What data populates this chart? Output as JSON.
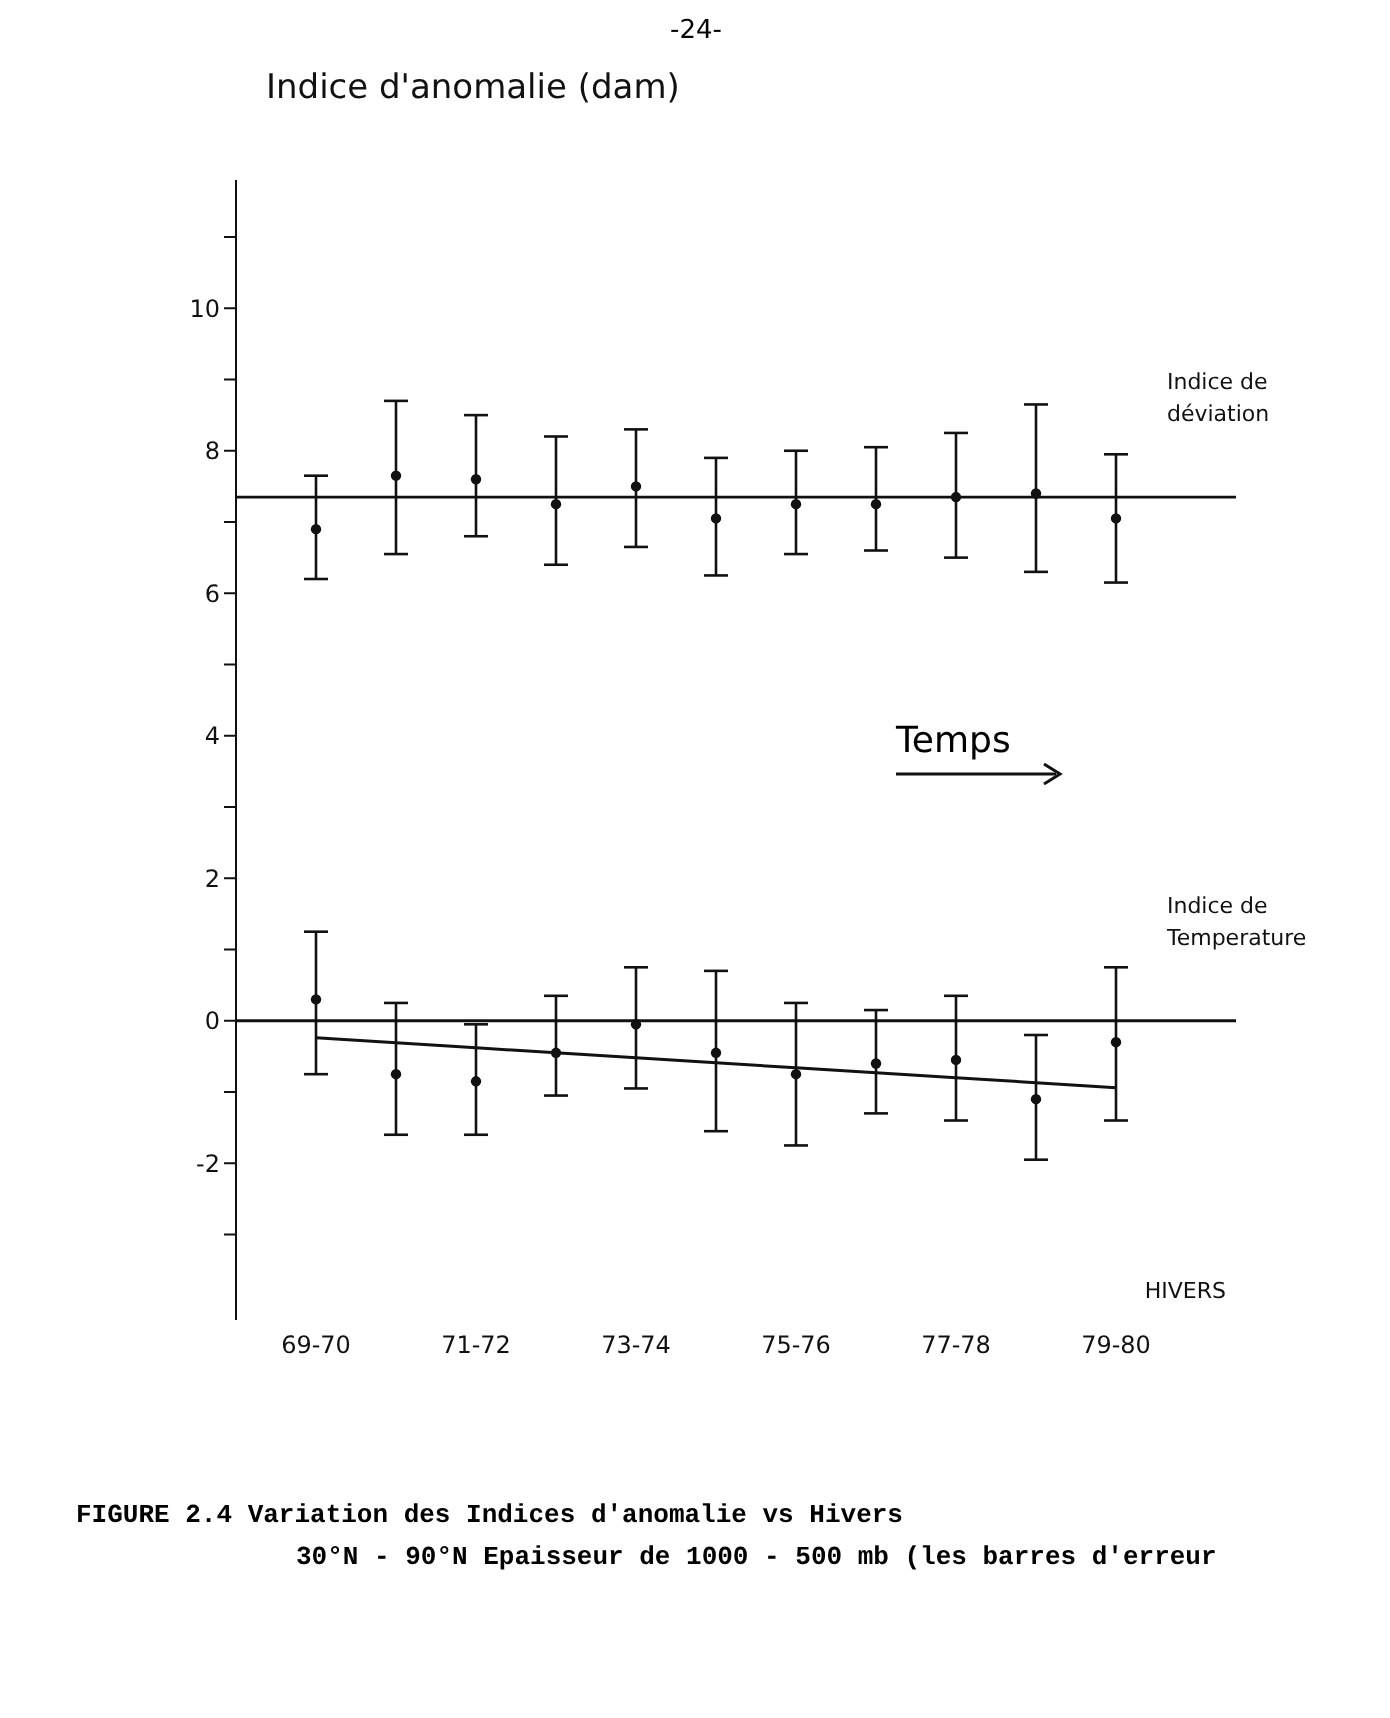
{
  "chart_data": {
    "type": "scatter",
    "ylabel": "Indice d'anomalie (dam)",
    "xlabel": "HIVERS",
    "categories": [
      "69-70",
      null,
      "71-72",
      null,
      "73-74",
      null,
      "75-76",
      null,
      "77-78",
      null,
      "79-80"
    ],
    "series": [
      {
        "name": "Indice de déviation",
        "color": "#111111",
        "marker": "circle",
        "values": [
          6.9,
          7.65,
          7.6,
          7.25,
          7.5,
          7.05,
          7.25,
          7.25,
          7.35,
          7.4,
          7.05
        ],
        "errors": [
          [
            6.2,
            7.65
          ],
          [
            6.55,
            8.7
          ],
          [
            6.8,
            8.5
          ],
          [
            6.4,
            8.2
          ],
          [
            6.65,
            8.3
          ],
          [
            6.25,
            7.9
          ],
          [
            6.55,
            8.0
          ],
          [
            6.6,
            8.05
          ],
          [
            6.5,
            8.25
          ],
          [
            6.3,
            8.65
          ],
          [
            6.15,
            7.95
          ]
        ]
      },
      {
        "name": "Indice de Temperature",
        "color": "#111111",
        "marker": "circle",
        "values": [
          0.3,
          -0.75,
          -0.85,
          -0.45,
          -0.05,
          -0.45,
          -0.75,
          -0.6,
          -0.55,
          -1.1,
          -0.3
        ],
        "errors": [
          [
            -0.75,
            1.25
          ],
          [
            -1.6,
            0.25
          ],
          [
            -1.6,
            -0.05
          ],
          [
            -1.05,
            0.35
          ],
          [
            -0.95,
            0.75
          ],
          [
            -1.55,
            0.7
          ],
          [
            -1.75,
            0.25
          ],
          [
            -1.3,
            0.15
          ],
          [
            -1.4,
            0.35
          ],
          [
            -1.95,
            -0.2
          ],
          [
            -1.4,
            0.75
          ]
        ]
      },
      {
        "type": "line",
        "color": "#111111",
        "marker": "none",
        "values": [
          -0.24,
          -0.31,
          -0.38,
          -0.45,
          -0.52,
          -0.59,
          -0.66,
          -0.73,
          -0.8,
          -0.87,
          -0.94
        ]
      }
    ],
    "ref_lines": [
      {
        "axis": "y",
        "value": 7.35,
        "color": "#111111"
      },
      {
        "axis": "y",
        "value": 0,
        "color": "#111111"
      }
    ],
    "ylim": [
      -4.2,
      11.8
    ],
    "yticks": [
      -2,
      {
        "value": -3,
        "label": null
      },
      {
        "value": -1,
        "label": null
      },
      0,
      {
        "value": 1,
        "label": null
      },
      2,
      {
        "value": 3,
        "label": null
      },
      4,
      {
        "value": 5,
        "label": null
      },
      6,
      {
        "value": 7,
        "label": null
      },
      8,
      {
        "value": 9,
        "label": null
      },
      10,
      {
        "value": 11,
        "label": null
      }
    ],
    "grid": false,
    "legend": false,
    "annotations": [
      "-24-",
      "Temps",
      "FIGURE 2.4  Variation des Indices d'anomalie vs Hivers",
      "30°N - 90°N  Epaisseur de 1000 - 500 mb (les barres d'erreur"
    ]
  }
}
